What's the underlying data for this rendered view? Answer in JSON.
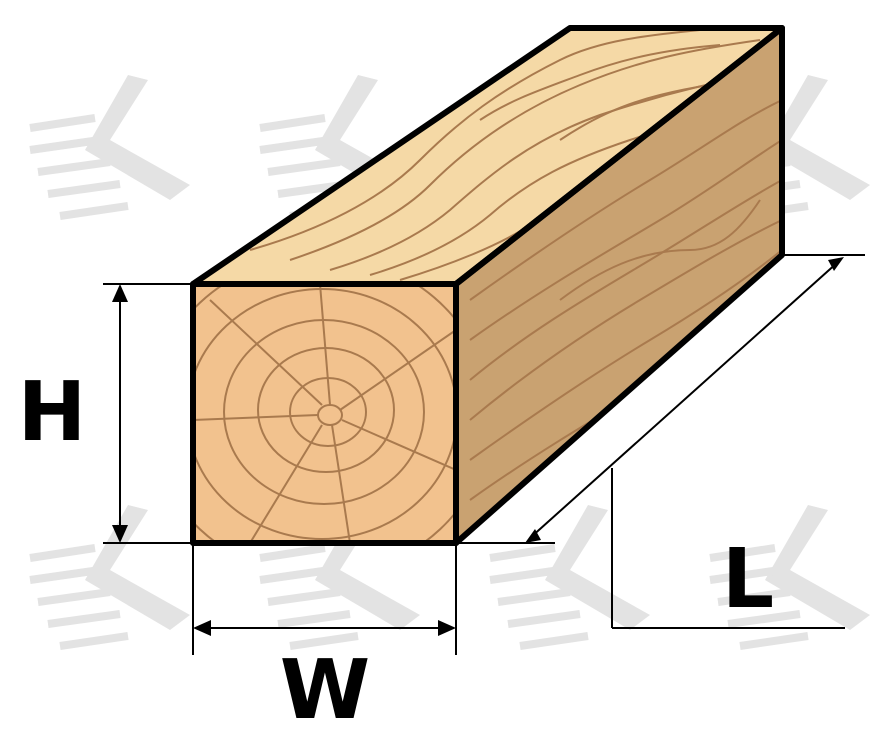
{
  "colors": {
    "top_face": "#F5D9A6",
    "front_face": "#F2C28E",
    "side_face": "#C9A271",
    "grain": "#A97A4E",
    "outline": "#000000",
    "watermark": "#E3E3E3"
  },
  "watermark": {
    "icon": "k-logo-watermark"
  },
  "dimensions": {
    "height_label": "H",
    "width_label": "W",
    "length_label": "L"
  }
}
